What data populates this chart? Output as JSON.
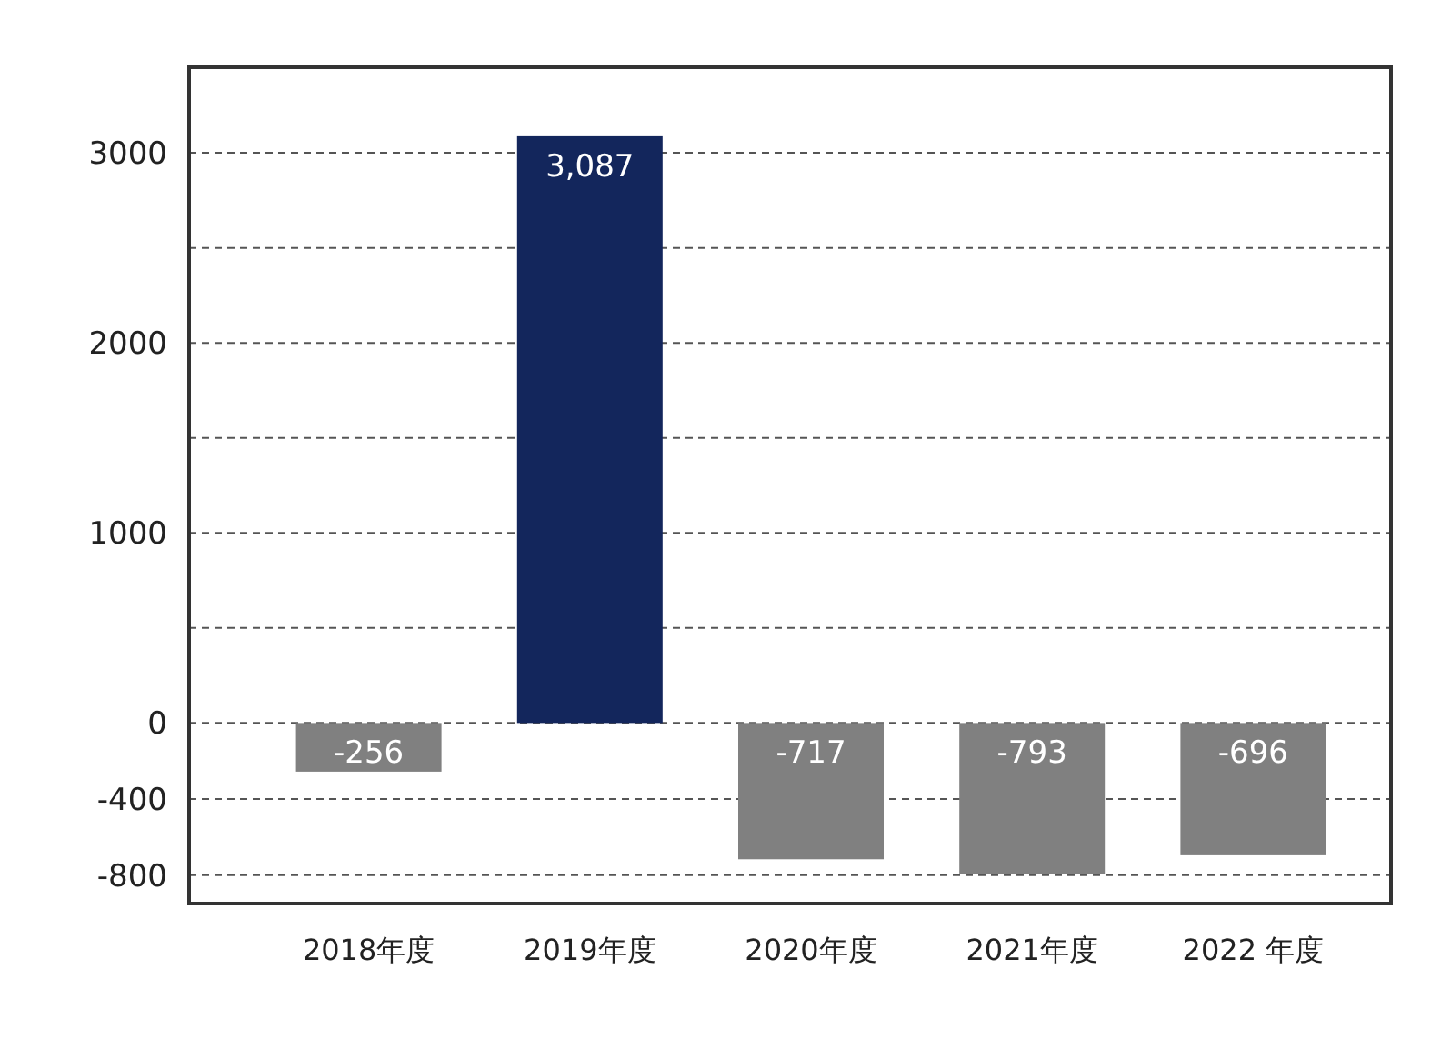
{
  "chart_data": {
    "type": "bar",
    "categories": [
      "2018年度",
      "2019年度",
      "2020年度",
      "2021年度",
      "2022 年度"
    ],
    "values": [
      -256,
      3087,
      -717,
      -793,
      -696
    ],
    "colors": [
      "#808080",
      "#13265c",
      "#808080",
      "#808080",
      "#808080"
    ],
    "value_labels": [
      "-256",
      "3,087",
      "-717",
      "-793",
      "-696"
    ],
    "ylim": [
      -950,
      3450
    ],
    "yticks": [
      -800,
      -400,
      0,
      {
        "value": 500,
        "label": null
      },
      1000,
      {
        "value": 1500,
        "label": null
      },
      2000,
      {
        "value": 2500,
        "label": null
      },
      3000
    ],
    "grid": "y"
  }
}
